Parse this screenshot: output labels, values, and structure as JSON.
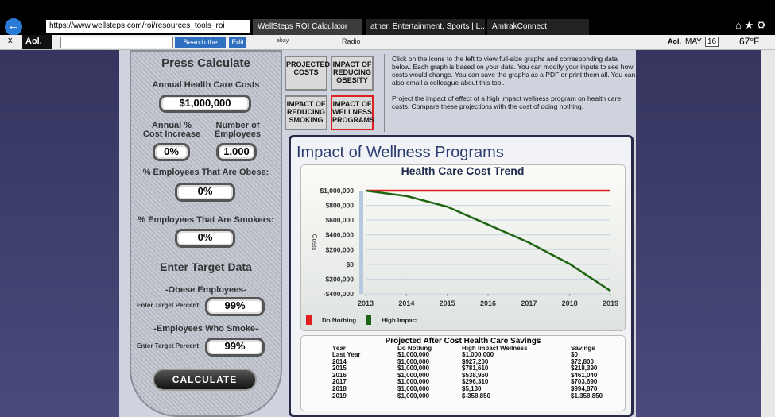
{
  "browser": {
    "url": "https://www.wellsteps.com/roi/resources_tools_roi",
    "tabs": [
      "WellSteps ROI Calculator",
      "ather, Entertainment, Sports | L...",
      "AmtrakConnect"
    ],
    "toolbar": {
      "brand": "Aol.",
      "search_button": "Search the Web",
      "edit": "Edit",
      "links": [
        "ebay",
        "Radio"
      ],
      "mail": "Aol.",
      "month": "MAY",
      "day": "16",
      "weather": "67°F"
    }
  },
  "calculator": {
    "heading": "Press Calculate",
    "cost_label": "Annual Health Care Costs",
    "cost_value": "$1,000,000",
    "increase_label": "Annual % Cost Increase",
    "increase_value": "0%",
    "employees_label": "Number of Employees",
    "employees_value": "1,000",
    "obese_label": "% Employees That Are Obese:",
    "obese_value": "0%",
    "smokers_label": "% Employees That Are Smokers:",
    "smokers_value": "0%",
    "target_heading": "Enter Target Data",
    "obese_target_heading": "-Obese Employees-",
    "obese_target_label": "Enter Target Percent:",
    "obese_target_value": "99%",
    "smoke_target_heading": "-Employees Who Smoke-",
    "smoke_target_label": "Enter Target Percent:",
    "smoke_target_value": "99%",
    "button": "CALCULATE"
  },
  "icons": [
    "PROJECTED COSTS",
    "IMPACT OF REDUCING OBESITY",
    "IMPACT OF REDUCING SMOKING",
    "IMPACT OF WELLNESS PROGRAMS"
  ],
  "intro": [
    "Click on the icons to the left to view full-size graphs and corresponding data below. Each graph is based on your data. You can modify your inputs to see how costs would change. You can save the graphs as a PDF or print them all. You can also email a colleague about this tool.",
    "Project the impact of effect of a high impact wellness program on health care costs. Compare these projections with the cost of doing nothing."
  ],
  "panel_title": "Impact of Wellness Programs",
  "chart": {
    "type": "line",
    "title": "Health Care Cost Trend",
    "y_label": "Costs",
    "x": [
      2013,
      2014,
      2015,
      2016,
      2017,
      2018,
      2019
    ],
    "series": [
      {
        "name": "Do Nothing",
        "color": "#e0201c",
        "values": [
          1000000,
          1000000,
          1000000,
          1000000,
          1000000,
          1000000,
          1000000
        ]
      },
      {
        "name": "High Impact",
        "color": "#1f6410",
        "values": [
          1000000,
          927200,
          781610,
          538960,
          296310,
          5130,
          -358850
        ]
      }
    ],
    "xlim": [
      2013,
      2019
    ],
    "xticks": [
      2013,
      2014,
      2015,
      2016,
      2017,
      2018,
      2019
    ],
    "ylim": [
      -400000,
      1000000
    ],
    "yticks": [
      {
        "value": -400000,
        "label": "-$400,000"
      },
      {
        "value": -200000,
        "label": "-$200,000"
      },
      {
        "value": 0,
        "label": "$0"
      },
      {
        "value": 200000,
        "label": "$200,000"
      },
      {
        "value": 400000,
        "label": "$400,000"
      },
      {
        "value": 600000,
        "label": "$600,000"
      },
      {
        "value": 800000,
        "label": "$800,000"
      },
      {
        "value": 1000000,
        "label": "$1,000,000"
      }
    ],
    "grid": true
  },
  "table": {
    "title": "Projected After Cost Health Care Savings",
    "headers": [
      "Year",
      "Do Nothing",
      "High Impact Wellness",
      "Savings"
    ],
    "rows": [
      [
        "Last Year",
        "$1,000,000",
        "$1,000,000",
        "$0"
      ],
      [
        "2014",
        "$1,000,000",
        "$927,200",
        "$72,800"
      ],
      [
        "2015",
        "$1,000,000",
        "$781,610",
        "$218,390"
      ],
      [
        "2016",
        "$1,000,000",
        "$538,960",
        "$461,040"
      ],
      [
        "2017",
        "$1,000,000",
        "$296,310",
        "$703,690"
      ],
      [
        "2018",
        "$1,000,000",
        "$5,130",
        "$994,870"
      ],
      [
        "2019",
        "$1,000,000",
        "$-358,850",
        "$1,358,850"
      ]
    ]
  }
}
